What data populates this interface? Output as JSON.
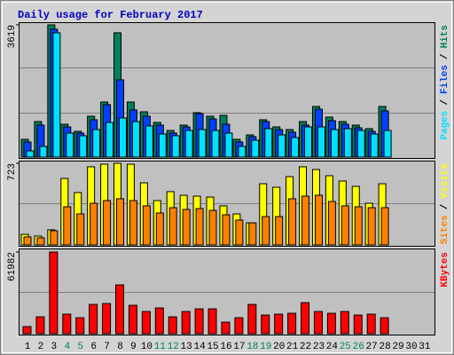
{
  "legend_separator": "/",
  "chart_data": [
    {
      "type": "bar",
      "title": "Daily usage for February 2017",
      "ylim": [
        0,
        3619
      ],
      "yticks": [
        3619
      ],
      "series": [
        {
          "name": "Hits",
          "color": "#00805c",
          "values": [
            486,
            972,
            3619,
            899,
            705,
            1118,
            1507,
            3402,
            1507,
            1239,
            948,
            729,
            875,
            1215,
            1118,
            1142,
            486,
            608,
            1021,
            826,
            753,
            972,
            1385,
            1094,
            972,
            875,
            778,
            1385,
            null,
            null,
            null
          ]
        },
        {
          "name": "Files",
          "color": "#0040ff",
          "values": [
            413,
            875,
            3499,
            826,
            656,
            1021,
            1434,
            2114,
            1288,
            1118,
            875,
            656,
            826,
            1191,
            1045,
            899,
            413,
            559,
            972,
            753,
            680,
            875,
            1312,
            996,
            899,
            802,
            705,
            1264,
            null,
            null,
            null
          ]
        },
        {
          "name": "Pages",
          "color": "#00e0ff",
          "values": [
            170,
            292,
            3402,
            656,
            583,
            753,
            948,
            1069,
            972,
            851,
            632,
            583,
            729,
            753,
            729,
            656,
            292,
            462,
            778,
            608,
            535,
            826,
            826,
            753,
            778,
            729,
            632,
            729,
            null,
            null,
            null
          ]
        }
      ]
    },
    {
      "type": "bar",
      "ylim": [
        0,
        723
      ],
      "yticks": [
        723
      ],
      "series": [
        {
          "name": "Visits",
          "color": "#ffff00",
          "values": [
            94,
            79,
            134,
            589,
            464,
            692,
            715,
            723,
            715,
            550,
            393,
            472,
            440,
            432,
            424,
            346,
            275,
            196,
            542,
            511,
            605,
            692,
            668,
            613,
            566,
            519,
            369,
            542,
            null,
            null,
            null
          ]
        },
        {
          "name": "Sites",
          "color": "#ff8000",
          "values": [
            71,
            63,
            126,
            338,
            275,
            369,
            393,
            409,
            393,
            346,
            283,
            330,
            314,
            322,
            306,
            267,
            220,
            196,
            251,
            251,
            409,
            432,
            440,
            385,
            346,
            338,
            330,
            330,
            null,
            null,
            null
          ]
        }
      ]
    },
    {
      "type": "bar",
      "ylim": [
        0,
        61982
      ],
      "yticks": [
        61982
      ],
      "categories": [
        "1",
        "2",
        "3",
        "4",
        "5",
        "6",
        "7",
        "8",
        "9",
        "10",
        "11",
        "12",
        "13",
        "14",
        "15",
        "16",
        "17",
        "18",
        "19",
        "20",
        "21",
        "22",
        "23",
        "24",
        "25",
        "26",
        "27",
        "28",
        "29",
        "30",
        "31"
      ],
      "category_colors": [
        "#000000",
        "#000000",
        "#000000",
        "#00805c",
        "#00805c",
        "#000000",
        "#000000",
        "#000000",
        "#000000",
        "#000000",
        "#00805c",
        "#00805c",
        "#000000",
        "#000000",
        "#000000",
        "#000000",
        "#000000",
        "#00805c",
        "#00805c",
        "#000000",
        "#000000",
        "#000000",
        "#000000",
        "#000000",
        "#00805c",
        "#00805c",
        "#000000",
        "#000000",
        "#000000",
        "#000000",
        "#000000"
      ],
      "series": [
        {
          "name": "KBytes",
          "color": "#ff0000",
          "values": [
            5390,
            12800,
            61982,
            14821,
            12127,
            22232,
            22906,
            37053,
            21558,
            16843,
            19537,
            12800,
            16843,
            18864,
            18864,
            8758,
            12127,
            22232,
            14147,
            14821,
            15495,
            23580,
            16843,
            15495,
            16843,
            14147,
            14821,
            12127,
            null,
            null,
            null
          ]
        }
      ]
    }
  ]
}
